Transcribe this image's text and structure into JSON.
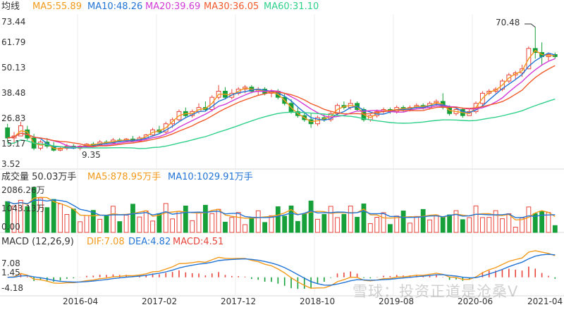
{
  "legend": {
    "main_label": "均线",
    "ma5": "MA5:55.89",
    "ma10": "MA10:48.26",
    "ma20": "MA20:39.69",
    "ma30": "MA30:36.05",
    "ma60": "MA60:31.10",
    "vol_label": "成交量 50.03万手",
    "vol_ma5": "MA5:878.95万手",
    "vol_ma10": "MA10:1029.91万手",
    "macd_label": "MACD (12,26,9)",
    "dif": "DIF:7.08",
    "dea": "DEA:4.82",
    "macd": "MACD:4.51"
  },
  "colors": {
    "up": "#e8443a",
    "down": "#17a03a",
    "ma5": "#f39a1a",
    "ma10": "#2274d6",
    "ma20": "#d23ad6",
    "ma30": "#f05a2a",
    "ma60": "#2fd08a"
  },
  "watermark": "雪球：投资正道是沧桑V",
  "chart_data": [
    {
      "type": "candlestick",
      "title": "均线",
      "y_ticks": [
        "73.44",
        "61.79",
        "50.13",
        "38.48",
        "26.83",
        "15.17",
        "3.52"
      ],
      "ylim": [
        3.52,
        73.44
      ],
      "x_ticks": [
        "2016-04",
        "2017-02",
        "2017-12",
        "2018-10",
        "2019-08",
        "2020-06",
        "2021-04"
      ],
      "annotations": [
        {
          "label": "70.48",
          "value": 70.48
        },
        {
          "label": "9.35",
          "value": 9.35
        }
      ],
      "candles": [
        {
          "o": 21,
          "h": 23,
          "l": 14,
          "c": 16
        },
        {
          "o": 16,
          "h": 19,
          "l": 13,
          "c": 17
        },
        {
          "o": 17,
          "h": 24,
          "l": 17,
          "c": 22
        },
        {
          "o": 20,
          "h": 22,
          "l": 15,
          "c": 16
        },
        {
          "o": 16,
          "h": 18,
          "l": 10,
          "c": 11
        },
        {
          "o": 11,
          "h": 15,
          "l": 10,
          "c": 14
        },
        {
          "o": 14,
          "h": 16,
          "l": 11,
          "c": 12
        },
        {
          "o": 12,
          "h": 14,
          "l": 9.35,
          "c": 10
        },
        {
          "o": 10,
          "h": 12,
          "l": 9.5,
          "c": 11
        },
        {
          "o": 11,
          "h": 13,
          "l": 10,
          "c": 12
        },
        {
          "o": 12,
          "h": 13,
          "l": 10.5,
          "c": 11
        },
        {
          "o": 11,
          "h": 12.5,
          "l": 10,
          "c": 12
        },
        {
          "o": 12,
          "h": 13.5,
          "l": 11,
          "c": 13
        },
        {
          "o": 13,
          "h": 14,
          "l": 12,
          "c": 12.5
        },
        {
          "o": 12.5,
          "h": 15,
          "l": 12,
          "c": 14
        },
        {
          "o": 14,
          "h": 15,
          "l": 13,
          "c": 13.5
        },
        {
          "o": 13.5,
          "h": 16,
          "l": 13,
          "c": 15
        },
        {
          "o": 15,
          "h": 16,
          "l": 14,
          "c": 14.5
        },
        {
          "o": 14.5,
          "h": 16,
          "l": 14,
          "c": 15.5
        },
        {
          "o": 15.5,
          "h": 17,
          "l": 14,
          "c": 14.5
        },
        {
          "o": 14.5,
          "h": 17,
          "l": 14,
          "c": 16
        },
        {
          "o": 16,
          "h": 18,
          "l": 15,
          "c": 17.5
        },
        {
          "o": 17.5,
          "h": 21,
          "l": 17,
          "c": 20
        },
        {
          "o": 20,
          "h": 22,
          "l": 18,
          "c": 19
        },
        {
          "o": 19,
          "h": 24,
          "l": 18,
          "c": 23
        },
        {
          "o": 23,
          "h": 26,
          "l": 21,
          "c": 25
        },
        {
          "o": 25,
          "h": 30,
          "l": 24,
          "c": 29
        },
        {
          "o": 29,
          "h": 31,
          "l": 26,
          "c": 27
        },
        {
          "o": 27,
          "h": 30,
          "l": 26,
          "c": 29
        },
        {
          "o": 29,
          "h": 33,
          "l": 28,
          "c": 31
        },
        {
          "o": 31,
          "h": 34,
          "l": 29,
          "c": 30
        },
        {
          "o": 30,
          "h": 37,
          "l": 29,
          "c": 36
        },
        {
          "o": 36,
          "h": 42,
          "l": 35,
          "c": 39
        },
        {
          "o": 39,
          "h": 41,
          "l": 35,
          "c": 36
        },
        {
          "o": 36,
          "h": 40,
          "l": 35,
          "c": 38
        },
        {
          "o": 38,
          "h": 41,
          "l": 37,
          "c": 40
        },
        {
          "o": 40,
          "h": 42,
          "l": 38,
          "c": 41
        },
        {
          "o": 41,
          "h": 42,
          "l": 38,
          "c": 39
        },
        {
          "o": 39,
          "h": 41,
          "l": 37,
          "c": 40
        },
        {
          "o": 40,
          "h": 41,
          "l": 37,
          "c": 38
        },
        {
          "o": 38,
          "h": 40,
          "l": 36,
          "c": 39
        },
        {
          "o": 39,
          "h": 40,
          "l": 35,
          "c": 36
        },
        {
          "o": 36,
          "h": 38,
          "l": 32,
          "c": 33
        },
        {
          "o": 33,
          "h": 35,
          "l": 28,
          "c": 29
        },
        {
          "o": 29,
          "h": 31,
          "l": 26,
          "c": 27
        },
        {
          "o": 27,
          "h": 29,
          "l": 24,
          "c": 25
        },
        {
          "o": 25,
          "h": 28,
          "l": 21,
          "c": 23
        },
        {
          "o": 23,
          "h": 27,
          "l": 22,
          "c": 26
        },
        {
          "o": 26,
          "h": 28,
          "l": 24,
          "c": 25
        },
        {
          "o": 25,
          "h": 29,
          "l": 24,
          "c": 28
        },
        {
          "o": 28,
          "h": 33,
          "l": 27,
          "c": 32
        },
        {
          "o": 32,
          "h": 34,
          "l": 30,
          "c": 31
        },
        {
          "o": 31,
          "h": 35,
          "l": 30,
          "c": 33
        },
        {
          "o": 33,
          "h": 34,
          "l": 29,
          "c": 30
        },
        {
          "o": 30,
          "h": 31,
          "l": 24,
          "c": 25
        },
        {
          "o": 25,
          "h": 28,
          "l": 24,
          "c": 27
        },
        {
          "o": 27,
          "h": 30,
          "l": 26,
          "c": 29
        },
        {
          "o": 29,
          "h": 31,
          "l": 28,
          "c": 30
        },
        {
          "o": 30,
          "h": 31,
          "l": 28,
          "c": 29
        },
        {
          "o": 29,
          "h": 32,
          "l": 28,
          "c": 31
        },
        {
          "o": 31,
          "h": 32,
          "l": 29,
          "c": 30
        },
        {
          "o": 30,
          "h": 32,
          "l": 29,
          "c": 31
        },
        {
          "o": 31,
          "h": 33,
          "l": 30,
          "c": 32
        },
        {
          "o": 32,
          "h": 33,
          "l": 30,
          "c": 31
        },
        {
          "o": 31,
          "h": 34,
          "l": 30,
          "c": 33
        },
        {
          "o": 33,
          "h": 35,
          "l": 32,
          "c": 34
        },
        {
          "o": 34,
          "h": 38,
          "l": 30,
          "c": 31
        },
        {
          "o": 31,
          "h": 32,
          "l": 27,
          "c": 28
        },
        {
          "o": 28,
          "h": 31,
          "l": 27,
          "c": 30
        },
        {
          "o": 30,
          "h": 31,
          "l": 26,
          "c": 27
        },
        {
          "o": 27,
          "h": 30,
          "l": 27,
          "c": 29
        },
        {
          "o": 29,
          "h": 34,
          "l": 28,
          "c": 33
        },
        {
          "o": 33,
          "h": 39,
          "l": 32,
          "c": 38
        },
        {
          "o": 38,
          "h": 40,
          "l": 37,
          "c": 39
        },
        {
          "o": 39,
          "h": 41,
          "l": 38,
          "c": 40
        },
        {
          "o": 40,
          "h": 45,
          "l": 39,
          "c": 44
        },
        {
          "o": 44,
          "h": 48,
          "l": 43,
          "c": 47
        },
        {
          "o": 47,
          "h": 49,
          "l": 45,
          "c": 48
        },
        {
          "o": 48,
          "h": 52,
          "l": 46,
          "c": 50
        },
        {
          "o": 50,
          "h": 61,
          "l": 50,
          "c": 60
        },
        {
          "o": 60,
          "h": 70.48,
          "l": 55,
          "c": 58
        },
        {
          "o": 58,
          "h": 63,
          "l": 52,
          "c": 56
        },
        {
          "o": 56,
          "h": 58,
          "l": 54,
          "c": 57
        },
        {
          "o": 57,
          "h": 58,
          "l": 55,
          "c": 56
        }
      ]
    },
    {
      "type": "bar",
      "title": "成交量",
      "y_ticks": [
        "2086.26万",
        "1043.13万",
        "0.00"
      ],
      "ylim": [
        0,
        2086.26
      ]
    },
    {
      "type": "bar",
      "title": "MACD (12,26,9)",
      "y_ticks": [
        "7.08",
        "1.45",
        "-4.18"
      ],
      "ylim": [
        -4.18,
        7.08
      ]
    }
  ]
}
